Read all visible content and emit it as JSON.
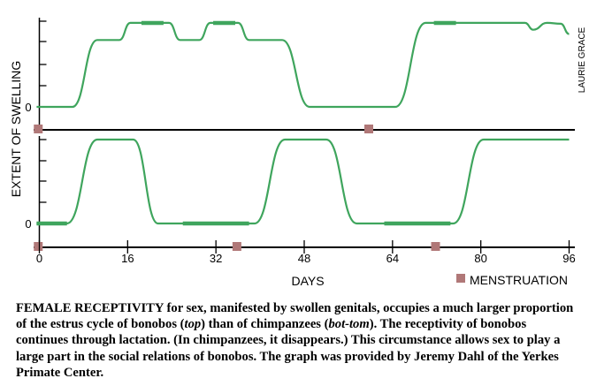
{
  "chart_data": {
    "type": "line",
    "ylabel": "EXTENT OF SWELLING",
    "xlabel": "DAYS",
    "credit": "LAURIE GRACE",
    "legend": {
      "label": "MENSTRUATION",
      "color": "#b07878",
      "placement": "bottom-right"
    },
    "xlim": [
      0,
      96
    ],
    "x_ticks": [
      "0",
      "16",
      "32",
      "48",
      "64",
      "80",
      "96"
    ],
    "y_zero_label": "0",
    "line_color": "#3fa55d",
    "panels": [
      {
        "name": "Bonobo (top)",
        "ylim": [
          0,
          1
        ],
        "swelling": [
          [
            -0.5,
            0
          ],
          [
            6,
            0
          ],
          [
            10.5,
            0.78
          ],
          [
            14.5,
            0.78
          ],
          [
            16.5,
            0.98
          ],
          [
            23.5,
            0.98
          ],
          [
            25.5,
            0.78
          ],
          [
            29,
            0.78
          ],
          [
            31,
            0.98
          ],
          [
            36,
            0.98
          ],
          [
            38,
            0.78
          ],
          [
            44,
            0.78
          ],
          [
            49,
            0
          ],
          [
            60,
            0
          ],
          [
            64.5,
            0
          ],
          [
            70,
            0.98
          ],
          [
            85,
            0.98
          ],
          [
            88,
            0.98
          ],
          [
            89.5,
            0.9
          ],
          [
            92,
            0.98
          ],
          [
            94.5,
            0.97
          ],
          [
            96,
            0.85
          ]
        ],
        "peak_segments": [
          [
            18.5,
            22.5
          ],
          [
            31.5,
            35.5
          ],
          [
            71.5,
            75.5
          ]
        ],
        "menstruation_days": [
          -0.2,
          59.7
        ]
      },
      {
        "name": "Chimpanzee (bottom)",
        "ylim": [
          0,
          1
        ],
        "swelling": [
          [
            -0.5,
            0
          ],
          [
            5,
            0
          ],
          [
            10.5,
            1
          ],
          [
            17,
            1
          ],
          [
            21.5,
            0
          ],
          [
            39,
            0
          ],
          [
            44.5,
            1
          ],
          [
            52,
            1
          ],
          [
            57.5,
            0
          ],
          [
            75,
            0
          ],
          [
            80.5,
            1
          ],
          [
            89,
            1
          ],
          [
            96,
            1
          ]
        ],
        "flat_segments": [
          [
            -0.5,
            5
          ],
          [
            26,
            38
          ],
          [
            62.5,
            74.5
          ]
        ],
        "menstruation_days": [
          -0.2,
          35.8,
          71.8
        ]
      }
    ]
  },
  "caption_parts": [
    "FEMALE RECEPTIVITY for sex, manifested by swollen genitals, occupies a much larger proportion of the estrus cycle of bonobos (",
    "top",
    ") than of chimpanzees (",
    "bot-tom",
    "). The receptivity of bonobos continues through lactation. (In chimpanzees, it disappears.) This circumstance allows sex to play a large part in the social relations of bonobos. The graph was provided by Jeremy Dahl of the Yerkes Primate Center."
  ]
}
